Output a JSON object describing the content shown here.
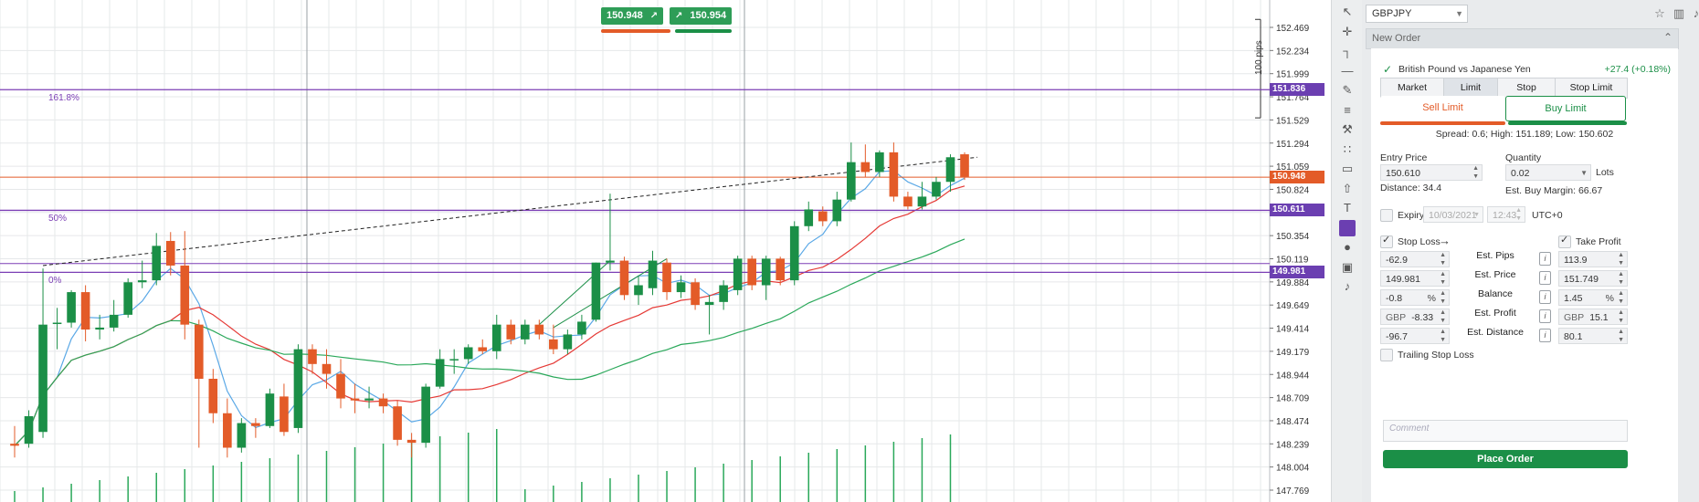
{
  "chart": {
    "quote_sell": "150.948",
    "quote_buy": "150.954",
    "pips_label": "100 pips",
    "fib": [
      {
        "label": "161.8%",
        "price": 151.836
      },
      {
        "label": "50%",
        "price": 150.611
      },
      {
        "label": "0%",
        "price": 149.981
      }
    ],
    "price_axis": [
      "152.469",
      "152.234",
      "151.999",
      "151.764",
      "151.529",
      "151.294",
      "151.059",
      "150.824",
      "150.589",
      "150.354",
      "150.119",
      "149.884",
      "149.649",
      "149.414",
      "149.179",
      "148.944",
      "148.709",
      "148.474",
      "148.239",
      "148.004",
      "147.769"
    ],
    "badges": [
      {
        "text": "151.836",
        "color": "#6b3fb1",
        "price": 151.836
      },
      {
        "text": "150.948",
        "color": "#e35b28",
        "price": 150.948
      },
      {
        "text": "150.611",
        "color": "#6b3fb1",
        "price": 150.611
      },
      {
        "text": "149.981",
        "color": "#6b3fb1",
        "price": 149.981
      }
    ],
    "colors": {
      "up": "#1b8f47",
      "down": "#e35b28",
      "fib": "#7b3fb5",
      "ma_fast": "#5aa8e6",
      "ma_mid": "#e53935",
      "ma_slow": "#2aa85a"
    }
  },
  "chart_data": {
    "type": "candlestick",
    "title": "",
    "ylim": [
      147.65,
      152.6
    ],
    "candles": [
      {
        "o": 148.24,
        "h": 148.42,
        "l": 148.1,
        "c": 148.22
      },
      {
        "o": 148.24,
        "h": 148.58,
        "l": 148.2,
        "c": 148.52
      },
      {
        "o": 148.36,
        "h": 150.02,
        "l": 148.3,
        "c": 149.45
      },
      {
        "o": 149.46,
        "h": 149.62,
        "l": 149.2,
        "c": 149.47
      },
      {
        "o": 149.47,
        "h": 149.8,
        "l": 149.42,
        "c": 149.78
      },
      {
        "o": 149.78,
        "h": 149.85,
        "l": 149.28,
        "c": 149.4
      },
      {
        "o": 149.4,
        "h": 149.55,
        "l": 149.3,
        "c": 149.42
      },
      {
        "o": 149.42,
        "h": 149.7,
        "l": 149.38,
        "c": 149.55
      },
      {
        "o": 149.55,
        "h": 149.92,
        "l": 149.52,
        "c": 149.88
      },
      {
        "o": 149.88,
        "h": 150.1,
        "l": 149.82,
        "c": 149.9
      },
      {
        "o": 149.9,
        "h": 150.38,
        "l": 149.85,
        "c": 150.25
      },
      {
        "o": 150.3,
        "h": 150.39,
        "l": 149.95,
        "c": 150.05
      },
      {
        "o": 150.05,
        "h": 150.4,
        "l": 149.3,
        "c": 149.45
      },
      {
        "o": 149.45,
        "h": 149.5,
        "l": 148.2,
        "c": 148.9
      },
      {
        "o": 148.9,
        "h": 149.0,
        "l": 148.45,
        "c": 148.55
      },
      {
        "o": 148.55,
        "h": 148.7,
        "l": 148.1,
        "c": 148.2
      },
      {
        "o": 148.2,
        "h": 148.5,
        "l": 148.15,
        "c": 148.45
      },
      {
        "o": 148.45,
        "h": 148.5,
        "l": 148.3,
        "c": 148.42
      },
      {
        "o": 148.42,
        "h": 148.8,
        "l": 148.4,
        "c": 148.75
      },
      {
        "o": 148.72,
        "h": 148.85,
        "l": 148.32,
        "c": 148.36
      },
      {
        "o": 148.4,
        "h": 149.25,
        "l": 148.35,
        "c": 149.2
      },
      {
        "o": 149.2,
        "h": 149.25,
        "l": 148.95,
        "c": 149.05
      },
      {
        "o": 149.05,
        "h": 149.2,
        "l": 148.8,
        "c": 148.95
      },
      {
        "o": 148.95,
        "h": 149.1,
        "l": 148.6,
        "c": 148.7
      },
      {
        "o": 148.7,
        "h": 148.85,
        "l": 148.55,
        "c": 148.68
      },
      {
        "o": 148.68,
        "h": 148.82,
        "l": 148.6,
        "c": 148.7
      },
      {
        "o": 148.7,
        "h": 148.75,
        "l": 148.55,
        "c": 148.62
      },
      {
        "o": 148.62,
        "h": 148.68,
        "l": 148.22,
        "c": 148.28
      },
      {
        "o": 148.28,
        "h": 148.35,
        "l": 148.1,
        "c": 148.25
      },
      {
        "o": 148.25,
        "h": 148.85,
        "l": 148.2,
        "c": 148.82
      },
      {
        "o": 148.82,
        "h": 149.2,
        "l": 148.8,
        "c": 149.1
      },
      {
        "o": 149.1,
        "h": 149.2,
        "l": 148.95,
        "c": 149.1
      },
      {
        "o": 149.1,
        "h": 149.25,
        "l": 149.05,
        "c": 149.22
      },
      {
        "o": 149.22,
        "h": 149.3,
        "l": 149.15,
        "c": 149.18
      },
      {
        "o": 149.18,
        "h": 149.55,
        "l": 149.1,
        "c": 149.45
      },
      {
        "o": 149.45,
        "h": 149.5,
        "l": 149.25,
        "c": 149.3
      },
      {
        "o": 149.3,
        "h": 149.5,
        "l": 149.25,
        "c": 149.45
      },
      {
        "o": 149.45,
        "h": 149.5,
        "l": 149.3,
        "c": 149.35
      },
      {
        "o": 149.3,
        "h": 149.45,
        "l": 149.15,
        "c": 149.2
      },
      {
        "o": 149.2,
        "h": 149.4,
        "l": 149.15,
        "c": 149.35
      },
      {
        "o": 149.35,
        "h": 149.55,
        "l": 149.3,
        "c": 149.48
      },
      {
        "o": 149.5,
        "h": 150.08,
        "l": 149.48,
        "c": 150.08
      },
      {
        "o": 150.08,
        "h": 150.78,
        "l": 150.0,
        "c": 150.1
      },
      {
        "o": 150.1,
        "h": 150.14,
        "l": 149.7,
        "c": 149.75
      },
      {
        "o": 149.75,
        "h": 149.95,
        "l": 149.65,
        "c": 149.85
      },
      {
        "o": 149.82,
        "h": 150.2,
        "l": 149.75,
        "c": 150.1
      },
      {
        "o": 150.08,
        "h": 150.12,
        "l": 149.7,
        "c": 149.78
      },
      {
        "o": 149.78,
        "h": 149.95,
        "l": 149.72,
        "c": 149.88
      },
      {
        "o": 149.88,
        "h": 149.92,
        "l": 149.6,
        "c": 149.65
      },
      {
        "o": 149.65,
        "h": 149.75,
        "l": 149.35,
        "c": 149.68
      },
      {
        "o": 149.68,
        "h": 149.9,
        "l": 149.6,
        "c": 149.85
      },
      {
        "o": 149.8,
        "h": 150.15,
        "l": 149.75,
        "c": 150.12
      },
      {
        "o": 150.12,
        "h": 150.15,
        "l": 149.8,
        "c": 149.85
      },
      {
        "o": 149.85,
        "h": 150.15,
        "l": 149.7,
        "c": 150.12
      },
      {
        "o": 150.12,
        "h": 150.14,
        "l": 149.85,
        "c": 149.9
      },
      {
        "o": 149.9,
        "h": 150.5,
        "l": 149.85,
        "c": 150.45
      },
      {
        "o": 150.45,
        "h": 150.7,
        "l": 150.4,
        "c": 150.62
      },
      {
        "o": 150.6,
        "h": 150.65,
        "l": 150.45,
        "c": 150.5
      },
      {
        "o": 150.5,
        "h": 150.8,
        "l": 150.45,
        "c": 150.72
      },
      {
        "o": 150.72,
        "h": 151.3,
        "l": 150.7,
        "c": 151.1
      },
      {
        "o": 151.1,
        "h": 151.28,
        "l": 150.95,
        "c": 151.0
      },
      {
        "o": 151.0,
        "h": 151.22,
        "l": 150.95,
        "c": 151.2
      },
      {
        "o": 151.2,
        "h": 151.3,
        "l": 150.7,
        "c": 150.75
      },
      {
        "o": 150.75,
        "h": 150.8,
        "l": 150.62,
        "c": 150.65
      },
      {
        "o": 150.65,
        "h": 150.9,
        "l": 150.62,
        "c": 150.75
      },
      {
        "o": 150.75,
        "h": 150.95,
        "l": 150.72,
        "c": 150.9
      },
      {
        "o": 150.9,
        "h": 151.18,
        "l": 150.8,
        "c": 151.15
      },
      {
        "o": 151.18,
        "h": 151.2,
        "l": 150.92,
        "c": 150.95
      }
    ]
  },
  "toolbar": {
    "tools": [
      "cursor-icon",
      "crosshair-icon",
      "horizontal-ray-icon",
      "line-icon",
      "pencil-icon",
      "parallel-channel-icon",
      "brush-icon",
      "fib-retracement-icon",
      "rectangle-icon",
      "arrow-up-icon",
      "text-icon",
      "color-swatch",
      "circle-icon",
      "camera-icon",
      "bell-icon"
    ],
    "glyphs": [
      "↖",
      "✛",
      "┐",
      "—",
      "✎",
      "≡",
      "⚒",
      "∷",
      "▭",
      "⇧",
      "T",
      "",
      "●",
      "▣",
      "♪"
    ]
  },
  "panel": {
    "symbol": "GBPJPY",
    "order_title": "New Order",
    "instrument_name": "British Pound vs Japanese Yen",
    "change": "+27.4 (+0.18%)",
    "tabs": [
      "Market",
      "Limit",
      "Stop",
      "Stop Limit"
    ],
    "sell_label": "Sell Limit",
    "buy_label": "Buy Limit",
    "spread_text": "Spread: 0.6; High: 151.189; Low: 150.602",
    "entry_price_label": "Entry Price",
    "entry_price": "150.610",
    "distance": "Distance: 34.4",
    "quantity_label": "Quantity",
    "quantity": "0.02",
    "lots_label": "Lots",
    "margin": "Est. Buy Margin: 66.67",
    "expiry_label": "Expiry",
    "expiry_date": "10/03/2021",
    "expiry_time": "12:43",
    "timezone": "UTC+0",
    "stop_loss_label": "Stop Loss",
    "take_profit_label": "Take Profit",
    "rows": [
      {
        "label": "Est. Pips",
        "sl": "-62.9",
        "tp": "113.9",
        "sl_unit": "",
        "tp_unit": "",
        "sl_ccy": "",
        "tp_ccy": ""
      },
      {
        "label": "Est. Price",
        "sl": "149.981",
        "tp": "151.749",
        "sl_unit": "",
        "tp_unit": "",
        "sl_ccy": "",
        "tp_ccy": ""
      },
      {
        "label": "Balance",
        "sl": "-0.8",
        "tp": "1.45",
        "sl_unit": "%",
        "tp_unit": "%",
        "sl_ccy": "",
        "tp_ccy": ""
      },
      {
        "label": "Est. Profit",
        "sl": "-8.33",
        "tp": "15.1",
        "sl_unit": "",
        "tp_unit": "",
        "sl_ccy": "GBP",
        "tp_ccy": "GBP"
      },
      {
        "label": "Est. Distance",
        "sl": "-96.7",
        "tp": "80.1",
        "sl_unit": "",
        "tp_unit": "",
        "sl_ccy": "",
        "tp_ccy": ""
      }
    ],
    "trailing_label": "Trailing Stop Loss",
    "comment_placeholder": "Comment",
    "place_order_label": "Place Order",
    "colors": {
      "sell": "#e35b28",
      "buy": "#1b8f47"
    }
  }
}
